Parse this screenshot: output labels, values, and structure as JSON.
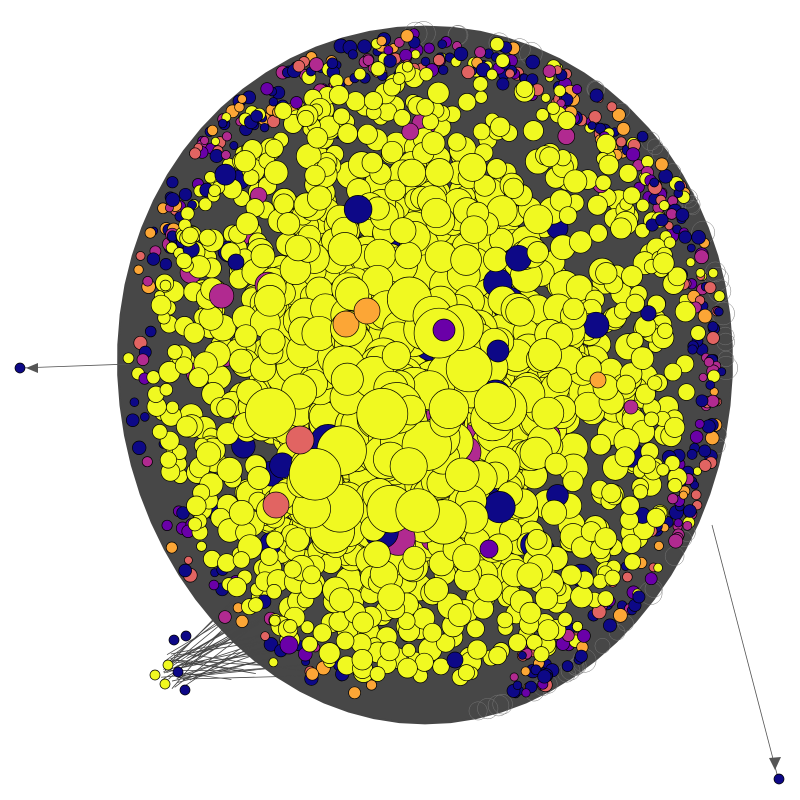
{
  "graph": {
    "type": "network",
    "colormap": "plasma",
    "palette": {
      "background": "#ffffff",
      "edge": "#474747",
      "node_outline": "#000000",
      "low": "#0d0887",
      "mid_low": "#6a00a8",
      "mid": "#b12a90",
      "mid_high": "#e16462",
      "high": "#fca636",
      "top": "#f0f921"
    },
    "visible_text": []
  }
}
